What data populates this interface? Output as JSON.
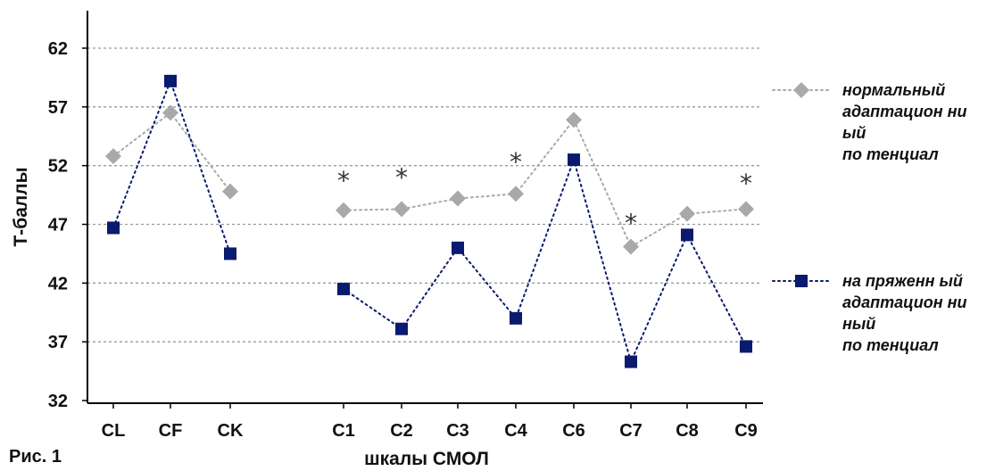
{
  "figure_caption": "Рис. 1",
  "chart_data": {
    "type": "line",
    "xlabel": "шкалы СМОЛ",
    "ylabel": "Т-баллы",
    "ylim": [
      32,
      62
    ],
    "yticks": [
      32,
      37,
      42,
      47,
      52,
      57,
      62
    ],
    "grid": true,
    "legend_position": "right",
    "categories": [
      "CL",
      "CF",
      "CK",
      "C1",
      "C2",
      "C3",
      "C4",
      "C6",
      "C7",
      "C8",
      "C9"
    ],
    "segments": [
      [
        "CL",
        "CF",
        "CK"
      ],
      [
        "C1",
        "C2",
        "C3",
        "C4",
        "C6",
        "C7",
        "C8",
        "C9"
      ]
    ],
    "series": [
      {
        "name": "нормальный адаптационный потенциал",
        "name_lines": [
          "нормальный",
          "адаптацион ни",
          "ый",
          "по тенциал"
        ],
        "marker": "diamond",
        "color": "#a9a9a9",
        "values": [
          52.8,
          56.5,
          49.8,
          48.2,
          48.3,
          49.2,
          49.6,
          55.9,
          45.1,
          47.9,
          48.3
        ]
      },
      {
        "name": "напряженный адаптационный потенциал",
        "name_lines": [
          "на пряженн ый",
          "адаптацион ни",
          "ный",
          "по тенциал"
        ],
        "marker": "square",
        "color": "#0a1a6e",
        "values": [
          46.7,
          59.2,
          44.5,
          41.5,
          38.1,
          45.0,
          39.0,
          52.5,
          35.3,
          46.1,
          36.6
        ]
      }
    ],
    "annotations": [
      {
        "category": "C1",
        "text": "*",
        "y": 51.2
      },
      {
        "category": "C2",
        "text": "*",
        "y": 51.5
      },
      {
        "category": "C4",
        "text": "*",
        "y": 52.8
      },
      {
        "category": "C7",
        "text": "*",
        "y": 47.6
      },
      {
        "category": "C9",
        "text": "*",
        "y": 51.0
      }
    ]
  }
}
